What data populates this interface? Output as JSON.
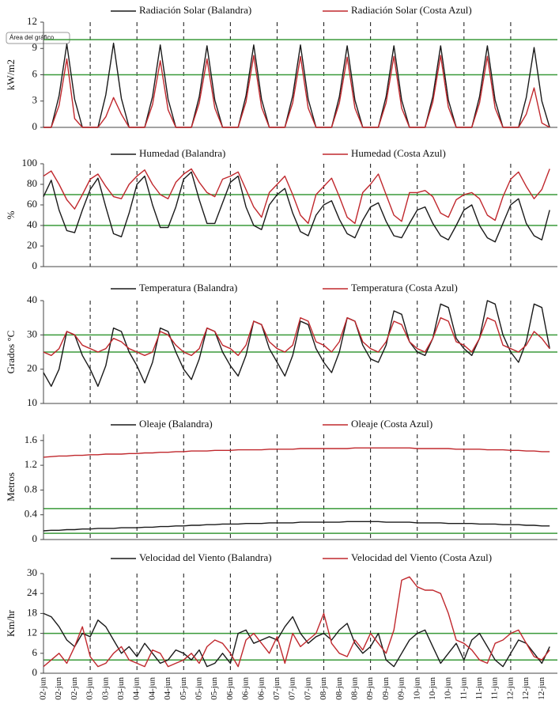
{
  "tooltip": "Área del gráfico",
  "chart_data": [
    {
      "type": "line",
      "y_label": "kW/m2",
      "ylim": [
        0,
        12
      ],
      "yticks": [
        0,
        3,
        6,
        9,
        12
      ],
      "hlines": [
        10,
        6
      ],
      "hline_color": "#3a9a3a",
      "series": [
        {
          "name": "Radiación Solar (Balandra)",
          "color": "#1a1a1a",
          "values": [
            0,
            0,
            3.6,
            9.5,
            3.2,
            0,
            0,
            0,
            3.7,
            9.6,
            3.3,
            0,
            0,
            0,
            3.5,
            9.4,
            3.2,
            0,
            0,
            0,
            3.5,
            9.3,
            3.1,
            0,
            0,
            0,
            3.6,
            9.4,
            3.2,
            0,
            0,
            0,
            3.6,
            9.4,
            3.2,
            0,
            0,
            0,
            3.5,
            9.3,
            3.1,
            0,
            0,
            0,
            3.5,
            9.3,
            3.1,
            0,
            0,
            0,
            3.5,
            9.3,
            3.1,
            0,
            0,
            0,
            3.5,
            9.3,
            3.1,
            0,
            0,
            0,
            3.4,
            9.1,
            3.0,
            0
          ]
        },
        {
          "name": "Radiación Solar (Costa Azul)",
          "color": "#c0282d",
          "values": [
            0,
            0,
            2.5,
            7.8,
            1.0,
            0,
            0,
            0,
            1.2,
            3.4,
            1.5,
            0,
            0,
            0,
            2.6,
            7.6,
            2.0,
            0,
            0,
            0,
            2.8,
            7.8,
            2.2,
            0,
            0,
            0,
            2.9,
            8.2,
            2.3,
            0,
            0,
            0,
            2.8,
            8.1,
            2.2,
            0,
            0,
            0,
            2.8,
            8.0,
            2.2,
            0,
            0,
            0,
            2.8,
            8.1,
            2.2,
            0,
            0,
            0,
            2.9,
            8.2,
            2.3,
            0,
            0,
            0,
            2.8,
            8.1,
            2.2,
            0,
            0,
            0,
            1.5,
            4.5,
            0.5,
            0
          ]
        }
      ]
    },
    {
      "type": "line",
      "y_label": "%",
      "ylim": [
        0,
        100
      ],
      "yticks": [
        0,
        20,
        40,
        60,
        80,
        100
      ],
      "hlines": [
        70,
        40
      ],
      "hline_color": "#3a9a3a",
      "series": [
        {
          "name": "Humedad (Balandra)",
          "color": "#1a1a1a",
          "values": [
            68,
            84,
            55,
            35,
            33,
            55,
            75,
            86,
            58,
            32,
            29,
            52,
            80,
            88,
            60,
            38,
            38,
            58,
            85,
            92,
            65,
            42,
            42,
            62,
            82,
            88,
            58,
            40,
            36,
            60,
            70,
            76,
            52,
            34,
            30,
            50,
            60,
            64,
            46,
            32,
            28,
            45,
            58,
            62,
            44,
            30,
            28,
            42,
            55,
            58,
            42,
            30,
            26,
            40,
            55,
            60,
            40,
            28,
            24,
            42,
            60,
            66,
            42,
            30,
            26,
            55
          ]
        },
        {
          "name": "Humedad (Costa Azul)",
          "color": "#c0282d",
          "values": [
            88,
            93,
            80,
            65,
            56,
            70,
            85,
            90,
            78,
            68,
            66,
            80,
            88,
            94,
            80,
            70,
            66,
            82,
            90,
            95,
            82,
            72,
            68,
            85,
            88,
            92,
            75,
            58,
            48,
            72,
            80,
            88,
            70,
            50,
            42,
            70,
            78,
            86,
            68,
            48,
            42,
            72,
            80,
            90,
            70,
            50,
            44,
            72,
            72,
            74,
            68,
            52,
            48,
            65,
            70,
            72,
            66,
            50,
            45,
            68,
            85,
            92,
            78,
            66,
            75,
            95
          ]
        }
      ]
    },
    {
      "type": "line",
      "y_label": "Grados °C",
      "ylim": [
        10,
        40
      ],
      "yticks": [
        10,
        20,
        30,
        40
      ],
      "hlines": [
        30,
        25
      ],
      "hline_color": "#3a9a3a",
      "series": [
        {
          "name": "Temperatura (Balandra)",
          "color": "#1a1a1a",
          "values": [
            19,
            15,
            20,
            31,
            30,
            24,
            20,
            15,
            21,
            32,
            31,
            25,
            21,
            16,
            22,
            32,
            31,
            25,
            20,
            17,
            23,
            32,
            31,
            25,
            21,
            18,
            24,
            34,
            33,
            26,
            22,
            18,
            24,
            34,
            33,
            26,
            22,
            19,
            25,
            35,
            34,
            27,
            23,
            22,
            27,
            37,
            36,
            28,
            25,
            24,
            29,
            39,
            38,
            29,
            26,
            24,
            29,
            40,
            39,
            30,
            25,
            22,
            28,
            39,
            38,
            26
          ]
        },
        {
          "name": "Temperatura (Costa Azul)",
          "color": "#c0282d",
          "values": [
            25,
            24,
            26,
            31,
            30,
            27,
            26,
            25,
            26,
            29,
            28,
            26,
            25,
            24,
            25,
            31,
            30,
            27,
            25,
            24,
            26,
            32,
            31,
            27,
            26,
            24,
            27,
            34,
            33,
            28,
            26,
            25,
            27,
            35,
            34,
            28,
            27,
            25,
            28,
            35,
            34,
            28,
            26,
            25,
            28,
            34,
            33,
            28,
            26,
            25,
            29,
            35,
            34,
            28,
            27,
            25,
            29,
            35,
            34,
            27,
            26,
            25,
            27,
            31,
            29,
            26
          ]
        }
      ]
    },
    {
      "type": "line",
      "y_label": "Metros",
      "ylim": [
        0,
        1.7
      ],
      "yticks": [
        0,
        0.4,
        0.8,
        1.2,
        1.6
      ],
      "hlines": [
        0.5,
        0.1
      ],
      "hline_color": "#3a9a3a",
      "series": [
        {
          "name": "Oleaje (Balandra)",
          "color": "#1a1a1a",
          "values": [
            0.14,
            0.15,
            0.15,
            0.16,
            0.16,
            0.17,
            0.17,
            0.18,
            0.18,
            0.18,
            0.19,
            0.19,
            0.19,
            0.2,
            0.2,
            0.21,
            0.21,
            0.22,
            0.22,
            0.23,
            0.23,
            0.24,
            0.24,
            0.25,
            0.25,
            0.25,
            0.26,
            0.26,
            0.26,
            0.27,
            0.27,
            0.27,
            0.27,
            0.28,
            0.28,
            0.28,
            0.28,
            0.28,
            0.28,
            0.29,
            0.29,
            0.29,
            0.29,
            0.29,
            0.28,
            0.28,
            0.28,
            0.28,
            0.27,
            0.27,
            0.27,
            0.27,
            0.26,
            0.26,
            0.26,
            0.26,
            0.25,
            0.25,
            0.25,
            0.24,
            0.24,
            0.24,
            0.23,
            0.23,
            0.22,
            0.22
          ]
        },
        {
          "name": "Oleaje (Costa Azul)",
          "color": "#c0282d",
          "values": [
            1.33,
            1.34,
            1.35,
            1.35,
            1.36,
            1.36,
            1.37,
            1.37,
            1.38,
            1.38,
            1.38,
            1.39,
            1.39,
            1.4,
            1.4,
            1.41,
            1.41,
            1.42,
            1.42,
            1.43,
            1.43,
            1.43,
            1.44,
            1.44,
            1.44,
            1.45,
            1.45,
            1.45,
            1.45,
            1.46,
            1.46,
            1.46,
            1.46,
            1.47,
            1.47,
            1.47,
            1.47,
            1.47,
            1.47,
            1.47,
            1.48,
            1.48,
            1.48,
            1.48,
            1.48,
            1.48,
            1.48,
            1.48,
            1.47,
            1.47,
            1.47,
            1.47,
            1.47,
            1.46,
            1.46,
            1.46,
            1.46,
            1.45,
            1.45,
            1.45,
            1.44,
            1.44,
            1.43,
            1.43,
            1.42,
            1.42
          ]
        }
      ]
    },
    {
      "type": "line",
      "y_label": "Km/hr",
      "ylim": [
        0,
        30
      ],
      "yticks": [
        0,
        6,
        12,
        18,
        24,
        30
      ],
      "hlines": [
        12,
        4
      ],
      "hline_color": "#3a9a3a",
      "categories": [
        "02-jun",
        null,
        "02-jun",
        null,
        "02-jun",
        null,
        "03-jun",
        null,
        "03-jun",
        null,
        "03-jun",
        null,
        "04-jun",
        null,
        "04-jun",
        null,
        "04-jun",
        null,
        "05-jun",
        null,
        "05-jun",
        null,
        "05-jun",
        null,
        "06-jun",
        null,
        "06-jun",
        null,
        "06-jun",
        null,
        "07-jun",
        null,
        "07-jun",
        null,
        "07-jun",
        null,
        "08-jun",
        null,
        "08-jun",
        null,
        "08-jun",
        null,
        "09-jun",
        null,
        "09-jun",
        null,
        "09-jun",
        null,
        "10-jun",
        null,
        "10-jun",
        null,
        "10-jun",
        null,
        "11-jun",
        null,
        "11-jun",
        null,
        "11-jun",
        null,
        "12-jun",
        null,
        "12-jun",
        null,
        "12-jun",
        null
      ],
      "series": [
        {
          "name": "Velocidad del Viento (Balandra)",
          "color": "#1a1a1a",
          "values": [
            18,
            17,
            14,
            10,
            8,
            12,
            11,
            16,
            14,
            10,
            6,
            8,
            5,
            9,
            6,
            3,
            4,
            7,
            6,
            4,
            7,
            2,
            3,
            6,
            3,
            12,
            13,
            9,
            10,
            11,
            10,
            14,
            17,
            12,
            9,
            11,
            12,
            10,
            13,
            15,
            9,
            6,
            8,
            12,
            4,
            2,
            6,
            10,
            12,
            13,
            8,
            3,
            6,
            9,
            4,
            10,
            12,
            8,
            4,
            2,
            6,
            10,
            9,
            6,
            3,
            8
          ]
        },
        {
          "name": "Velocidad del Viento (Costa Azul)",
          "color": "#c0282d",
          "values": [
            2,
            4,
            6,
            3,
            8,
            14,
            5,
            2,
            3,
            6,
            8,
            4,
            3,
            2,
            7,
            6,
            2,
            3,
            4,
            6,
            3,
            8,
            10,
            9,
            6,
            2,
            10,
            12,
            9,
            6,
            11,
            3,
            12,
            8,
            10,
            12,
            18,
            9,
            6,
            5,
            10,
            7,
            12,
            9,
            6,
            13,
            28,
            29,
            26,
            25,
            25,
            24,
            18,
            10,
            9,
            7,
            4,
            3,
            9,
            10,
            12,
            13,
            9,
            5,
            4,
            7
          ]
        }
      ]
    }
  ]
}
